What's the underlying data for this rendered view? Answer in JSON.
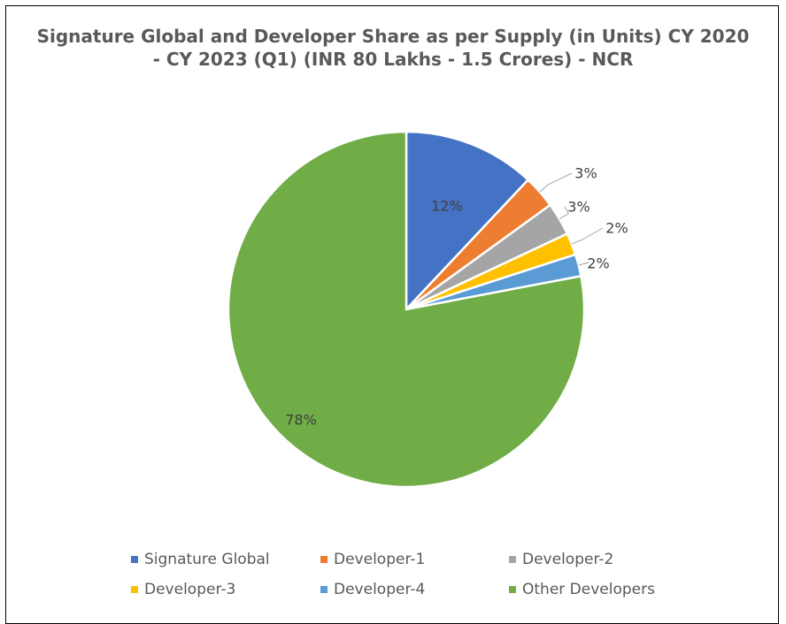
{
  "chart_data": {
    "type": "pie",
    "title_lines": [
      "Signature Global and Developer Share as per Supply (in Units) CY 2020",
      "- CY 2023 (Q1) (INR 80 Lakhs - 1.5 Crores) - NCR"
    ],
    "slices": [
      {
        "name": "Signature Global",
        "value": 12,
        "label": "12%",
        "color": "#4472C4"
      },
      {
        "name": "Developer-1",
        "value": 3,
        "label": "3%",
        "color": "#ED7D31"
      },
      {
        "name": "Developer-2",
        "value": 3,
        "label": "3%",
        "color": "#A5A5A5"
      },
      {
        "name": "Developer-3",
        "value": 2,
        "label": "2%",
        "color": "#FFC000"
      },
      {
        "name": "Developer-4",
        "value": 2,
        "label": "2%",
        "color": "#5B9BD5"
      },
      {
        "name": "Other Developers",
        "value": 78,
        "label": "78%",
        "color": "#70AD47"
      }
    ],
    "legend_position": "bottom"
  }
}
